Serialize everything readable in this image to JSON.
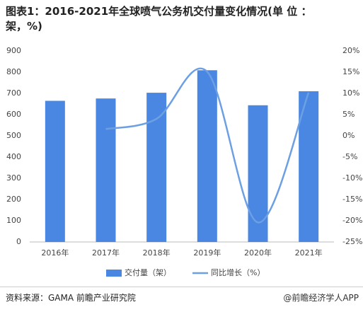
{
  "chart_data": {
    "type": "bar-line",
    "title": "图表1：2016-2021年全球喷气公务机交付量变化情况(单 位 ：架，%)",
    "categories": [
      "2016年",
      "2017年",
      "2018年",
      "2019年",
      "2020年",
      "2021年"
    ],
    "series": [
      {
        "name": "交付量（架）",
        "type": "bar",
        "color": "#4a87e2",
        "values": [
          665,
          676,
          703,
          809,
          644,
          710
        ]
      },
      {
        "name": "同比增长（%）",
        "type": "line",
        "color": "#6d9fe3",
        "axis": "y2",
        "values": [
          null,
          1.6,
          4.0,
          15.1,
          -20.4,
          10.2
        ]
      }
    ],
    "ylim": [
      0,
      900
    ],
    "yticks": [
      0,
      100,
      200,
      300,
      400,
      500,
      600,
      700,
      800,
      900
    ],
    "y2lim": [
      -25,
      20
    ],
    "y2ticks": [
      {
        "value": -25,
        "label": "-25%"
      },
      {
        "value": -20,
        "label": "-20%"
      },
      {
        "value": -15,
        "label": "-15%"
      },
      {
        "value": -10,
        "label": "-10%"
      },
      {
        "value": -5,
        "label": "-5%"
      },
      {
        "value": 0,
        "label": "0%"
      },
      {
        "value": 5,
        "label": "5%"
      },
      {
        "value": 10,
        "label": "10%"
      },
      {
        "value": 15,
        "label": "15%"
      },
      {
        "value": 20,
        "label": "20%"
      }
    ],
    "source": "资料来源：GAMA 前瞻产业研究院",
    "watermark": "@前瞻经济学人APP"
  }
}
